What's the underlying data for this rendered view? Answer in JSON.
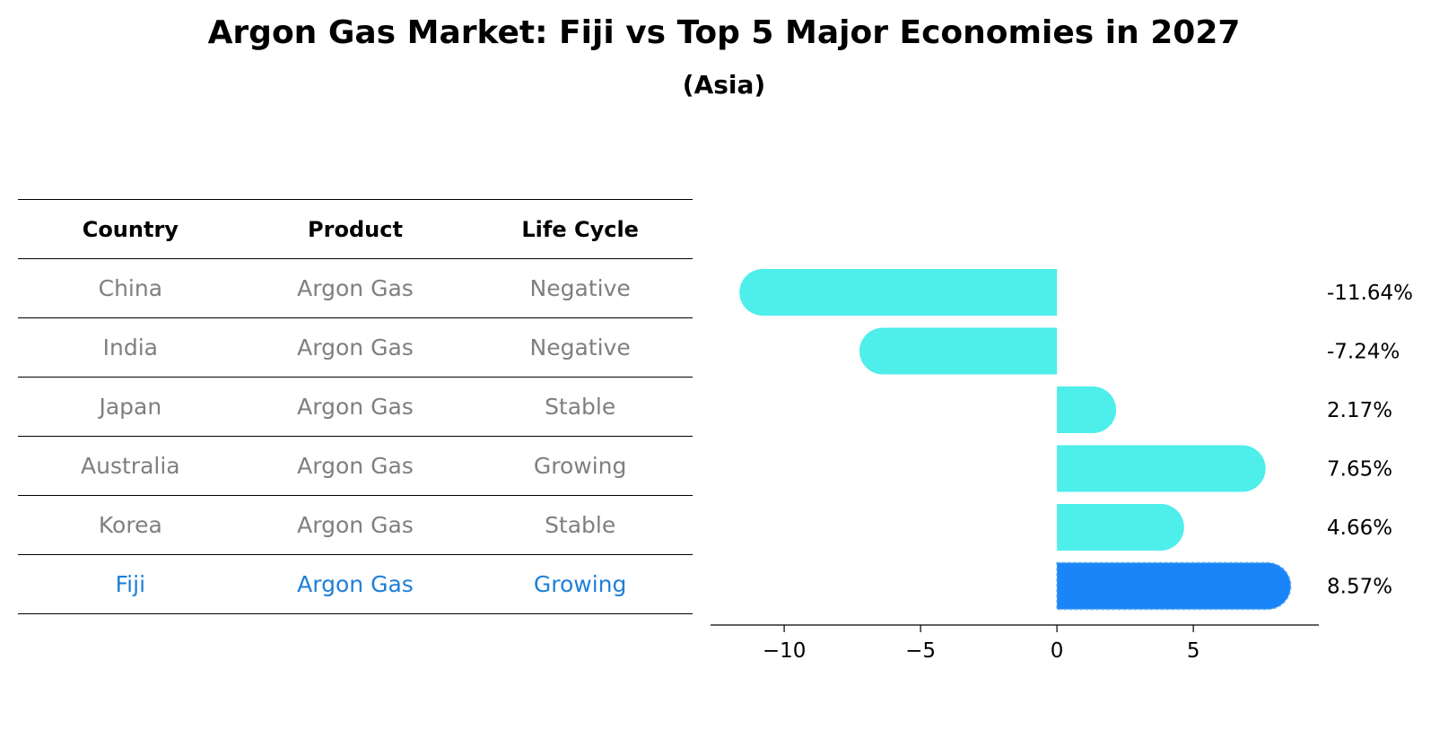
{
  "title": "Argon Gas Market: Fiji vs Top 5 Major Economies in 2027",
  "subtitle": "(Asia)",
  "table": {
    "headers": [
      "Country",
      "Product",
      "Life Cycle"
    ],
    "rows": [
      {
        "country": "China",
        "product": "Argon Gas",
        "life_cycle": "Negative"
      },
      {
        "country": "India",
        "product": "Argon Gas",
        "life_cycle": "Negative"
      },
      {
        "country": "Japan",
        "product": "Argon Gas",
        "life_cycle": "Stable"
      },
      {
        "country": "Australia",
        "product": "Argon Gas",
        "life_cycle": "Growing"
      },
      {
        "country": "Korea",
        "product": "Argon Gas",
        "life_cycle": "Stable"
      },
      {
        "country": "Fiji",
        "product": "Argon Gas",
        "life_cycle": "Growing"
      }
    ]
  },
  "colors": {
    "bar": "#4eeeea",
    "highlight_bar": "#1a85f8",
    "highlight_text": "#1f7fd8",
    "muted_text": "#7f7f7f"
  },
  "chart_data": {
    "type": "bar",
    "orientation": "horizontal",
    "categories": [
      "China",
      "India",
      "Japan",
      "Australia",
      "Korea",
      "Fiji"
    ],
    "values": [
      -11.64,
      -7.24,
      2.17,
      7.65,
      4.66,
      8.57
    ],
    "value_labels": [
      "-11.64%",
      "-7.24%",
      "2.17%",
      "7.65%",
      "4.66%",
      "8.57%"
    ],
    "highlight": "Fiji",
    "xlim": [
      -12.7,
      9.6
    ],
    "xticks": [
      -10,
      -5,
      0,
      5
    ],
    "xtick_labels": [
      "−10",
      "−5",
      "0",
      "5"
    ],
    "grid": false
  }
}
